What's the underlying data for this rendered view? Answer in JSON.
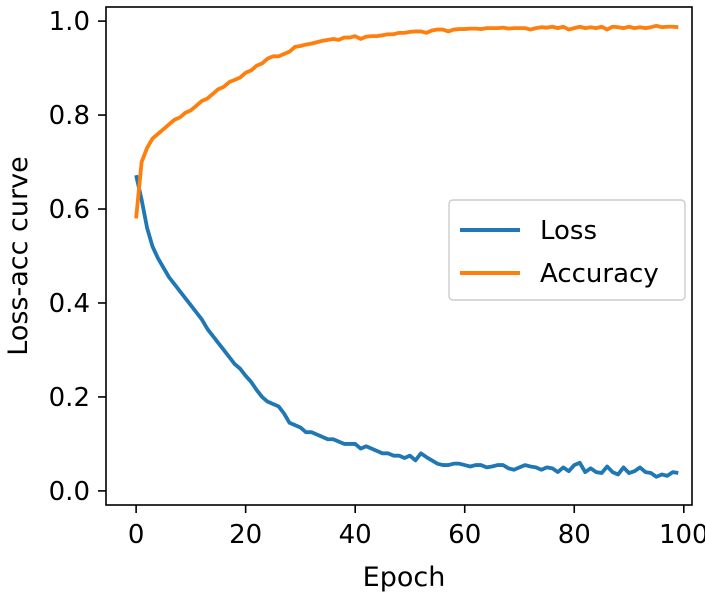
{
  "chart_data": {
    "type": "line",
    "title": "",
    "xlabel": "Epoch",
    "ylabel": "Loss-acc curve",
    "xlim": [
      -5.5,
      101.5
    ],
    "ylim": [
      -0.03,
      1.03
    ],
    "x_ticks": [
      0,
      20,
      40,
      60,
      80,
      100
    ],
    "y_ticks": [
      0.0,
      0.2,
      0.4,
      0.6,
      0.8,
      1.0
    ],
    "x_tick_labels": [
      "0",
      "20",
      "40",
      "60",
      "80",
      "100"
    ],
    "y_tick_labels": [
      "0.0",
      "0.2",
      "0.4",
      "0.6",
      "0.8",
      "1.0"
    ],
    "grid": false,
    "legend_position": "center-right",
    "series": [
      {
        "name": "Loss",
        "color": "#1f77b4",
        "x": [
          0,
          1,
          2,
          3,
          4,
          5,
          6,
          7,
          8,
          9,
          10,
          11,
          12,
          13,
          14,
          15,
          16,
          17,
          18,
          19,
          20,
          21,
          22,
          23,
          24,
          25,
          26,
          27,
          28,
          29,
          30,
          31,
          32,
          33,
          34,
          35,
          36,
          37,
          38,
          39,
          40,
          41,
          42,
          43,
          44,
          45,
          46,
          47,
          48,
          49,
          50,
          51,
          52,
          53,
          54,
          55,
          56,
          57,
          58,
          59,
          60,
          61,
          62,
          63,
          64,
          65,
          66,
          67,
          68,
          69,
          70,
          71,
          72,
          73,
          74,
          75,
          76,
          77,
          78,
          79,
          80,
          81,
          82,
          83,
          84,
          85,
          86,
          87,
          88,
          89,
          90,
          91,
          92,
          93,
          94,
          95,
          96,
          97,
          98,
          99
        ],
        "values": [
          0.672,
          0.62,
          0.56,
          0.52,
          0.495,
          0.475,
          0.455,
          0.44,
          0.425,
          0.41,
          0.395,
          0.38,
          0.365,
          0.345,
          0.33,
          0.315,
          0.3,
          0.285,
          0.27,
          0.26,
          0.245,
          0.232,
          0.215,
          0.2,
          0.19,
          0.185,
          0.18,
          0.165,
          0.145,
          0.14,
          0.135,
          0.125,
          0.125,
          0.12,
          0.115,
          0.11,
          0.11,
          0.105,
          0.1,
          0.1,
          0.1,
          0.09,
          0.095,
          0.09,
          0.085,
          0.08,
          0.08,
          0.075,
          0.075,
          0.07,
          0.075,
          0.065,
          0.08,
          0.072,
          0.065,
          0.058,
          0.055,
          0.055,
          0.058,
          0.058,
          0.055,
          0.052,
          0.055,
          0.055,
          0.05,
          0.052,
          0.055,
          0.055,
          0.048,
          0.045,
          0.05,
          0.055,
          0.052,
          0.05,
          0.045,
          0.05,
          0.048,
          0.04,
          0.05,
          0.042,
          0.055,
          0.06,
          0.04,
          0.048,
          0.04,
          0.038,
          0.052,
          0.04,
          0.035,
          0.05,
          0.038,
          0.042,
          0.05,
          0.04,
          0.038,
          0.03,
          0.035,
          0.032,
          0.04,
          0.038
        ]
      },
      {
        "name": "Accuracy",
        "color": "#ff7f0e",
        "x": [
          0,
          1,
          2,
          3,
          4,
          5,
          6,
          7,
          8,
          9,
          10,
          11,
          12,
          13,
          14,
          15,
          16,
          17,
          18,
          19,
          20,
          21,
          22,
          23,
          24,
          25,
          26,
          27,
          28,
          29,
          30,
          31,
          32,
          33,
          34,
          35,
          36,
          37,
          38,
          39,
          40,
          41,
          42,
          43,
          44,
          45,
          46,
          47,
          48,
          49,
          50,
          51,
          52,
          53,
          54,
          55,
          56,
          57,
          58,
          59,
          60,
          61,
          62,
          63,
          64,
          65,
          66,
          67,
          68,
          69,
          70,
          71,
          72,
          73,
          74,
          75,
          76,
          77,
          78,
          79,
          80,
          81,
          82,
          83,
          84,
          85,
          86,
          87,
          88,
          89,
          90,
          91,
          92,
          93,
          94,
          95,
          96,
          97,
          98,
          99
        ],
        "values": [
          0.58,
          0.7,
          0.73,
          0.75,
          0.76,
          0.77,
          0.78,
          0.79,
          0.795,
          0.805,
          0.81,
          0.82,
          0.83,
          0.835,
          0.845,
          0.855,
          0.86,
          0.87,
          0.875,
          0.88,
          0.89,
          0.895,
          0.905,
          0.91,
          0.92,
          0.925,
          0.925,
          0.93,
          0.935,
          0.945,
          0.947,
          0.95,
          0.952,
          0.955,
          0.958,
          0.96,
          0.962,
          0.96,
          0.965,
          0.965,
          0.968,
          0.962,
          0.967,
          0.968,
          0.968,
          0.97,
          0.972,
          0.972,
          0.975,
          0.975,
          0.977,
          0.978,
          0.978,
          0.975,
          0.98,
          0.982,
          0.982,
          0.978,
          0.982,
          0.983,
          0.983,
          0.984,
          0.984,
          0.983,
          0.985,
          0.985,
          0.985,
          0.986,
          0.984,
          0.985,
          0.985,
          0.985,
          0.982,
          0.985,
          0.987,
          0.986,
          0.988,
          0.985,
          0.988,
          0.982,
          0.985,
          0.988,
          0.985,
          0.987,
          0.985,
          0.988,
          0.982,
          0.988,
          0.987,
          0.985,
          0.988,
          0.985,
          0.987,
          0.985,
          0.987,
          0.99,
          0.987,
          0.988,
          0.988,
          0.987
        ]
      }
    ]
  }
}
